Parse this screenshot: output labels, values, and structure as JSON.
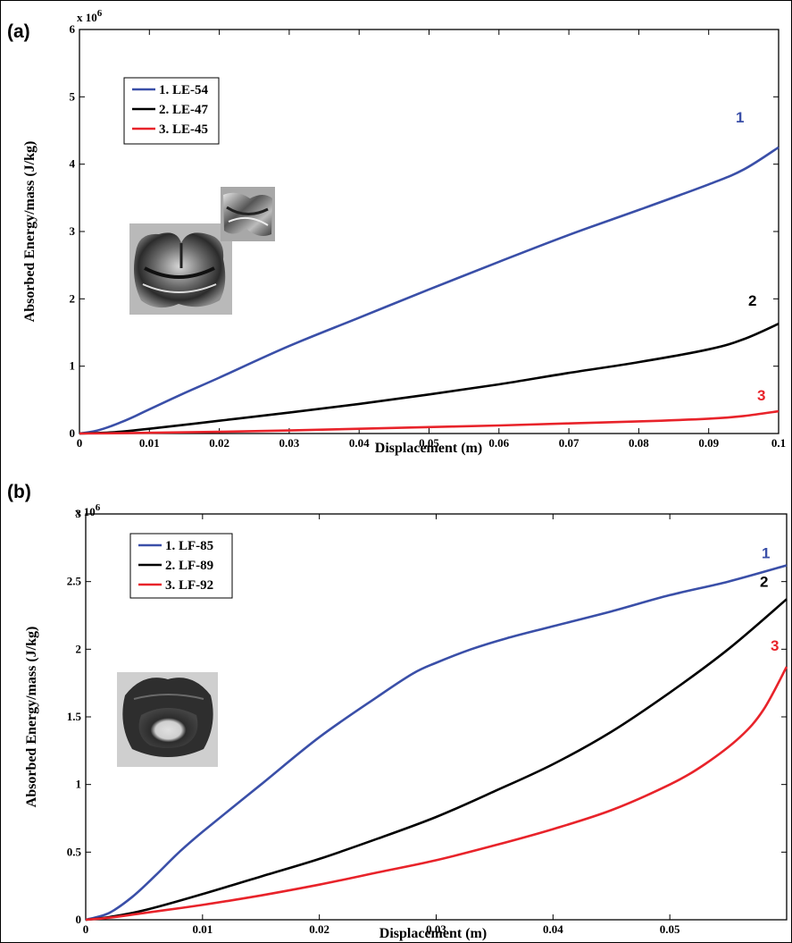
{
  "panels": [
    {
      "label": "(a)",
      "exponent": "x 10",
      "exponent_power": "6",
      "xlabel": "Displacement (m)",
      "ylabel": "Absorbed Energy/mass (J/kg)",
      "photo_description": ""
    },
    {
      "label": "(b)",
      "exponent": "x 10",
      "exponent_power": "6",
      "xlabel": "Displacement (m)",
      "ylabel": "Absorbed Energy/mass (J/kg)"
    }
  ],
  "chart_data": [
    {
      "type": "line",
      "panel": "(a)",
      "xlabel": "Displacement (m)",
      "ylabel": "Absorbed Energy/mass (J/kg)",
      "xlim": [
        0,
        0.1
      ],
      "ylim": [
        0,
        6000000
      ],
      "x_ticks": [
        0,
        0.01,
        0.02,
        0.03,
        0.04,
        0.05,
        0.06,
        0.07,
        0.08,
        0.09,
        0.1
      ],
      "y_ticks": [
        0,
        1,
        2,
        3,
        4,
        5,
        6
      ],
      "y_tick_labels": [
        "0",
        "1",
        "2",
        "3",
        "4",
        "5",
        "6"
      ],
      "x_tick_labels": [
        "0",
        "0.01",
        "0.02",
        "0.03",
        "0.04",
        "0.05",
        "0.06",
        "0.07",
        "0.08",
        "0.09",
        "0.1"
      ],
      "legend_position": "top-left",
      "series": [
        {
          "name": "1. LE-54",
          "end_label": "1",
          "color": "#3a4fa8",
          "x": [
            0,
            0.002,
            0.004,
            0.006,
            0.008,
            0.01,
            0.015,
            0.02,
            0.03,
            0.04,
            0.05,
            0.06,
            0.07,
            0.08,
            0.09,
            0.095,
            0.1
          ],
          "y": [
            0,
            30000,
            90000,
            170000,
            260000,
            360000,
            600000,
            830000,
            1300000,
            1720000,
            2140000,
            2550000,
            2950000,
            3320000,
            3700000,
            3920000,
            4250000
          ]
        },
        {
          "name": "2. LE-47",
          "end_label": "2",
          "color": "#000000",
          "x": [
            0,
            0.005,
            0.01,
            0.02,
            0.03,
            0.04,
            0.05,
            0.06,
            0.07,
            0.08,
            0.09,
            0.095,
            0.1
          ],
          "y": [
            0,
            20000,
            70000,
            190000,
            310000,
            440000,
            580000,
            730000,
            900000,
            1060000,
            1250000,
            1400000,
            1630000
          ]
        },
        {
          "name": "3. LE-45",
          "end_label": "3",
          "color": "#e8232a",
          "x": [
            0,
            0.01,
            0.02,
            0.03,
            0.04,
            0.05,
            0.06,
            0.07,
            0.08,
            0.09,
            0.095,
            0.1
          ],
          "y": [
            0,
            10000,
            25000,
            45000,
            70000,
            95000,
            120000,
            150000,
            180000,
            220000,
            260000,
            330000
          ]
        }
      ]
    },
    {
      "type": "line",
      "panel": "(b)",
      "xlabel": "Displacement (m)",
      "ylabel": "Absorbed Energy/mass (J/kg)",
      "xlim": [
        0,
        0.06
      ],
      "ylim": [
        0,
        3000000
      ],
      "x_ticks": [
        0,
        0.01,
        0.02,
        0.03,
        0.04,
        0.05
      ],
      "x_tick_labels": [
        "0",
        "0.01",
        "0.02",
        "0.03",
        "0.04",
        "0.05"
      ],
      "y_ticks": [
        0,
        0.5,
        1,
        1.5,
        2,
        2.5,
        3
      ],
      "y_tick_labels": [
        "0",
        "0.5",
        "1",
        "1.5",
        "2",
        "2.5",
        "3"
      ],
      "legend_position": "top-left",
      "series": [
        {
          "name": "1. LF-85",
          "end_label": "1",
          "color": "#3a4fa8",
          "x": [
            0,
            0.002,
            0.004,
            0.006,
            0.008,
            0.01,
            0.015,
            0.02,
            0.025,
            0.028,
            0.03,
            0.033,
            0.036,
            0.04,
            0.045,
            0.05,
            0.055,
            0.06
          ],
          "y": [
            0,
            50000,
            170000,
            330000,
            500000,
            650000,
            1000000,
            1350000,
            1650000,
            1820000,
            1900000,
            2000000,
            2080000,
            2170000,
            2280000,
            2400000,
            2500000,
            2620000
          ]
        },
        {
          "name": "2. LF-89",
          "end_label": "2",
          "color": "#000000",
          "x": [
            0,
            0.002,
            0.005,
            0.01,
            0.015,
            0.02,
            0.025,
            0.03,
            0.035,
            0.04,
            0.045,
            0.05,
            0.055,
            0.06
          ],
          "y": [
            0,
            20000,
            70000,
            190000,
            320000,
            450000,
            600000,
            760000,
            950000,
            1150000,
            1390000,
            1680000,
            2000000,
            2370000
          ]
        },
        {
          "name": "3. LF-92",
          "end_label": "3",
          "color": "#e8232a",
          "x": [
            0,
            0.002,
            0.005,
            0.01,
            0.015,
            0.02,
            0.025,
            0.03,
            0.035,
            0.04,
            0.045,
            0.05,
            0.053,
            0.056,
            0.058,
            0.06
          ],
          "y": [
            0,
            15000,
            50000,
            110000,
            180000,
            260000,
            350000,
            440000,
            550000,
            670000,
            810000,
            1000000,
            1150000,
            1350000,
            1550000,
            1870000
          ]
        }
      ]
    }
  ]
}
